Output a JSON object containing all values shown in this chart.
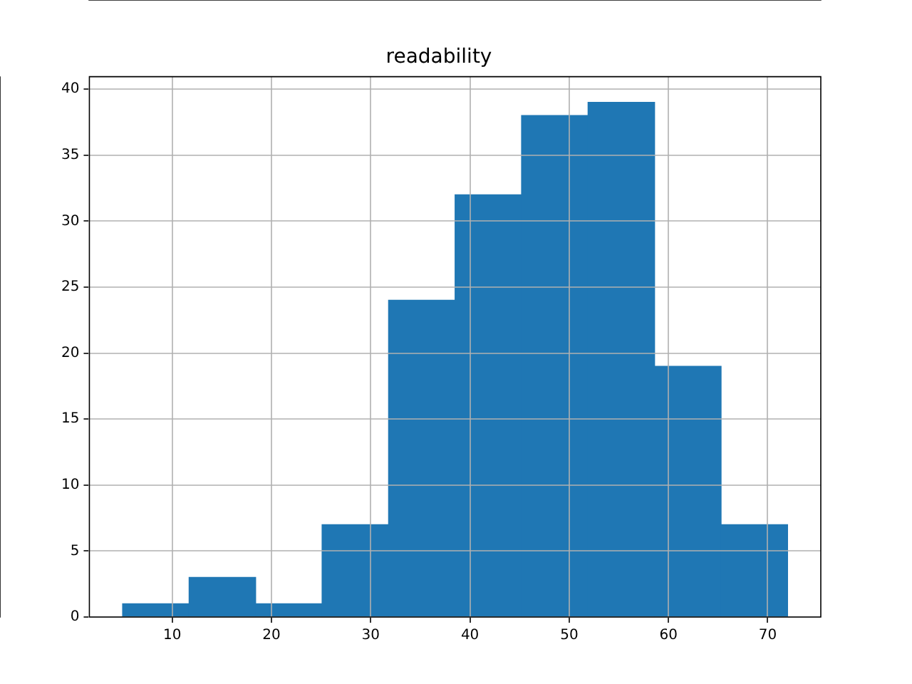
{
  "chart_data": {
    "type": "histogram",
    "title": "readability",
    "bins": [
      5,
      11.7,
      18.4,
      25.1,
      31.8,
      38.5,
      45.2,
      51.9,
      58.6,
      65.3,
      72
    ],
    "values": [
      1,
      3,
      1,
      7,
      24,
      32,
      38,
      39,
      19,
      7
    ],
    "color": "#1f77b4",
    "xlim": [
      1.65,
      75.35
    ],
    "xticks": [
      10,
      20,
      30,
      40,
      50,
      60,
      70
    ],
    "ylim": [
      0,
      40.95
    ],
    "yticks": [
      0,
      5,
      10,
      15,
      20,
      25,
      30,
      35,
      40
    ],
    "grid": true
  }
}
